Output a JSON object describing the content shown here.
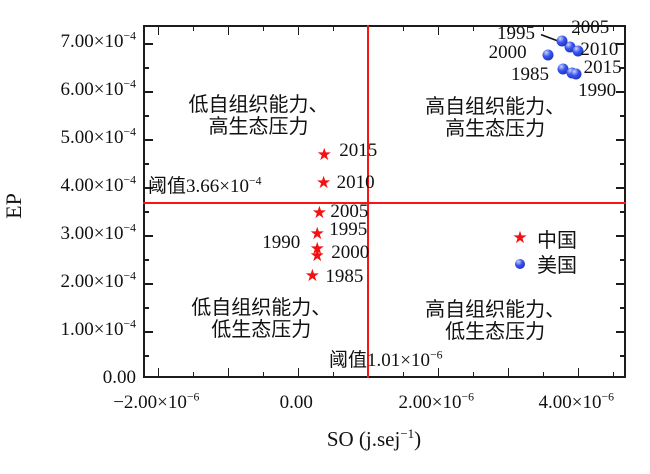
{
  "icons": {
    "star": "★"
  },
  "colors": {
    "china_red": "#f31111",
    "threshold_red": "#fa1414",
    "axis_black": "#1c1c1c",
    "usa_blue_light": "#c9d4ff",
    "usa_blue_mid": "#3a55ee",
    "usa_blue_dark": "#0f1fa0"
  },
  "legend": {
    "items": [
      {
        "label": "中国",
        "marker": "star"
      },
      {
        "label": "美国",
        "marker": "ball"
      }
    ]
  },
  "chart_data": {
    "type": "scatter",
    "title": "",
    "xlabel": "SO (j.sej^{−1})",
    "ylabel": "EP",
    "x_unit_factor": "1e-6",
    "y_unit_factor": "1e-4",
    "xlim": [
      -2.19,
      4.71
    ],
    "ylim": [
      0,
      7.35
    ],
    "x_minor_step": 0.5,
    "x_major_step": 1,
    "y_minor_step": 0.5,
    "y_major_step": 1,
    "grid": false,
    "legend_position": "right-center",
    "x_tick_labels": [
      {
        "v": -2,
        "label": "−2.00×10^{−6}"
      },
      {
        "v": 0,
        "label": "0.00"
      },
      {
        "v": 2,
        "label": "2.00×10^{−6}"
      },
      {
        "v": 4,
        "label": "4.00×10^{−6}"
      }
    ],
    "y_tick_labels": [
      {
        "v": 0,
        "label": "0.00"
      },
      {
        "v": 1,
        "label": "1.00×10^{−4}"
      },
      {
        "v": 2,
        "label": "2.00×10^{−4}"
      },
      {
        "v": 3,
        "label": "3.00×10^{−4}"
      },
      {
        "v": 4,
        "label": "4.00×10^{−4}"
      },
      {
        "v": 5,
        "label": "5.00×10^{−4}"
      },
      {
        "v": 6,
        "label": "6.00×10^{−4}"
      },
      {
        "v": 7,
        "label": "7.00×10^{−4}"
      }
    ],
    "thresholds": {
      "horizontal": {
        "value": 3.66,
        "label": "阈值3.66×10^{−4}"
      },
      "vertical": {
        "value": 1.01,
        "label": "阈值1.01×10^{−6}"
      }
    },
    "quadrants": [
      {
        "lines": [
          "低自组织能力、",
          "高生态压力"
        ],
        "x": -0.54,
        "y": 5.46
      },
      {
        "lines": [
          "高自组织能力、",
          "高生态压力"
        ],
        "x": 2.84,
        "y": 5.42
      },
      {
        "lines": [
          "低自组织能力、",
          "低生态压力"
        ],
        "x": -0.5,
        "y": 1.23
      },
      {
        "lines": [
          "高自组织能力、",
          "低生态压力"
        ],
        "x": 2.84,
        "y": 1.19
      }
    ],
    "series": [
      {
        "name": "中国",
        "marker": "star",
        "points": [
          {
            "year": "1985",
            "x": 0.23,
            "y": 2.1,
            "dx": 32,
            "dy": 0
          },
          {
            "year": "1990",
            "x": 0.3,
            "y": 2.67,
            "dx": -36,
            "dy": -7
          },
          {
            "year": "1995",
            "x": 0.3,
            "y": 2.98,
            "dx": 31,
            "dy": -5
          },
          {
            "year": "2000",
            "x": 0.3,
            "y": 2.52,
            "dx": 33,
            "dy": -4
          },
          {
            "year": "2005",
            "x": 0.33,
            "y": 3.42,
            "dx": 30,
            "dy": -2
          },
          {
            "year": "2010",
            "x": 0.39,
            "y": 4.04,
            "dx": 32,
            "dy": -1
          },
          {
            "year": "2015",
            "x": 0.4,
            "y": 4.63,
            "dx": 34,
            "dy": -5
          }
        ]
      },
      {
        "name": "美国",
        "marker": "ball",
        "points": [
          {
            "year": "1985",
            "x": 3.81,
            "y": 6.44,
            "dx": -33,
            "dy": 6
          },
          {
            "year": "1990",
            "x": 3.94,
            "y": 6.35,
            "dx": 25,
            "dy": 18
          },
          {
            "year": "1995",
            "x": 3.91,
            "y": 6.9,
            "dx": -54,
            "dy": -13,
            "leader": true
          },
          {
            "year": "2000",
            "x": 3.59,
            "y": 6.73,
            "dx": -40,
            "dy": -2
          },
          {
            "year": "2005",
            "x": 3.8,
            "y": 7.02,
            "dx": 28,
            "dy": -13
          },
          {
            "year": "2010",
            "x": 4.03,
            "y": 6.81,
            "dx": 21,
            "dy": -1
          },
          {
            "year": "2015",
            "x": 3.99,
            "y": 6.33,
            "dx": 27,
            "dy": -6
          }
        ]
      }
    ]
  }
}
